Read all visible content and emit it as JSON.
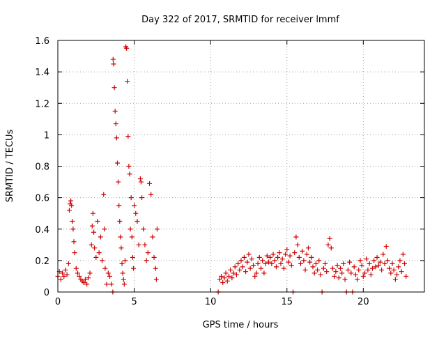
{
  "chart_data": {
    "type": "scatter",
    "title": "Day 322 of 2017, SRMTID for receiver lmmf",
    "xlabel": "GPS time / hours",
    "ylabel": "SRMTID / TECUs",
    "xlim": [
      0,
      24
    ],
    "ylim": [
      0,
      1.6
    ],
    "grid": true,
    "marker": "plus",
    "x_ticks": [
      0,
      5,
      10,
      15,
      20
    ],
    "x_tick_labels": [
      "0",
      "5",
      "10",
      "15",
      "20"
    ],
    "y_ticks": [
      0,
      0.2,
      0.4,
      0.6,
      0.8,
      1.0,
      1.2,
      1.4,
      1.6
    ],
    "y_tick_labels": [
      "0",
      "0.2",
      "0.4",
      "0.6",
      "0.8",
      "1",
      "1.2",
      "1.4",
      "1.6"
    ],
    "colors": {
      "series": "#cc0000",
      "grid": "#a0a0a0",
      "axis": "#000000"
    },
    "series": [
      {
        "name": "SRMTID",
        "points": [
          [
            0.0,
            0.1
          ],
          [
            0.1,
            0.13
          ],
          [
            0.2,
            0.08
          ],
          [
            0.3,
            0.12
          ],
          [
            0.4,
            0.1
          ],
          [
            0.5,
            0.14
          ],
          [
            0.6,
            0.11
          ],
          [
            0.7,
            0.18
          ],
          [
            0.75,
            0.52
          ],
          [
            0.8,
            0.56
          ],
          [
            0.85,
            0.58
          ],
          [
            0.9,
            0.55
          ],
          [
            0.95,
            0.45
          ],
          [
            1.0,
            0.4
          ],
          [
            1.05,
            0.32
          ],
          [
            1.1,
            0.25
          ],
          [
            1.2,
            0.15
          ],
          [
            1.3,
            0.12
          ],
          [
            1.4,
            0.1
          ],
          [
            1.5,
            0.08
          ],
          [
            1.6,
            0.07
          ],
          [
            1.7,
            0.06
          ],
          [
            1.8,
            0.08
          ],
          [
            1.9,
            0.05
          ],
          [
            2.0,
            0.09
          ],
          [
            2.1,
            0.12
          ],
          [
            2.2,
            0.3
          ],
          [
            2.25,
            0.42
          ],
          [
            2.3,
            0.5
          ],
          [
            2.35,
            0.38
          ],
          [
            2.4,
            0.28
          ],
          [
            2.5,
            0.22
          ],
          [
            2.6,
            0.45
          ],
          [
            2.7,
            0.25
          ],
          [
            2.8,
            0.35
          ],
          [
            2.9,
            0.2
          ],
          [
            3.0,
            0.62
          ],
          [
            3.05,
            0.4
          ],
          [
            3.1,
            0.15
          ],
          [
            3.2,
            0.05
          ],
          [
            3.3,
            0.12
          ],
          [
            3.4,
            0.1
          ],
          [
            3.5,
            0.05
          ],
          [
            3.6,
            0.0
          ],
          [
            3.62,
            1.48
          ],
          [
            3.65,
            1.45
          ],
          [
            3.7,
            1.3
          ],
          [
            3.75,
            1.15
          ],
          [
            3.8,
            1.07
          ],
          [
            3.85,
            0.98
          ],
          [
            3.9,
            0.82
          ],
          [
            3.95,
            0.7
          ],
          [
            4.0,
            0.55
          ],
          [
            4.05,
            0.45
          ],
          [
            4.1,
            0.35
          ],
          [
            4.15,
            0.28
          ],
          [
            4.2,
            0.18
          ],
          [
            4.25,
            0.12
          ],
          [
            4.3,
            0.08
          ],
          [
            4.35,
            0.05
          ],
          [
            4.4,
            0.2
          ],
          [
            4.45,
            1.56
          ],
          [
            4.5,
            1.55
          ],
          [
            4.55,
            1.34
          ],
          [
            4.6,
            0.99
          ],
          [
            4.65,
            0.8
          ],
          [
            4.7,
            0.75
          ],
          [
            4.75,
            0.4
          ],
          [
            4.8,
            0.6
          ],
          [
            4.85,
            0.35
          ],
          [
            4.9,
            0.22
          ],
          [
            4.95,
            0.15
          ],
          [
            5.0,
            0.55
          ],
          [
            5.1,
            0.5
          ],
          [
            5.2,
            0.45
          ],
          [
            5.3,
            0.3
          ],
          [
            5.4,
            0.72
          ],
          [
            5.45,
            0.7
          ],
          [
            5.5,
            0.6
          ],
          [
            5.6,
            0.4
          ],
          [
            5.7,
            0.3
          ],
          [
            5.8,
            0.2
          ],
          [
            5.9,
            0.25
          ],
          [
            6.0,
            0.69
          ],
          [
            6.1,
            0.62
          ],
          [
            6.2,
            0.35
          ],
          [
            6.3,
            0.22
          ],
          [
            6.4,
            0.15
          ],
          [
            6.45,
            0.08
          ],
          [
            6.5,
            0.4
          ],
          [
            10.5,
            0.0
          ],
          [
            10.6,
            0.08
          ],
          [
            10.7,
            0.1
          ],
          [
            10.8,
            0.06
          ],
          [
            10.9,
            0.09
          ],
          [
            11.0,
            0.12
          ],
          [
            11.1,
            0.07
          ],
          [
            11.2,
            0.1
          ],
          [
            11.3,
            0.14
          ],
          [
            11.4,
            0.09
          ],
          [
            11.5,
            0.12
          ],
          [
            11.6,
            0.16
          ],
          [
            11.7,
            0.11
          ],
          [
            11.8,
            0.18
          ],
          [
            11.9,
            0.14
          ],
          [
            12.0,
            0.2
          ],
          [
            12.1,
            0.16
          ],
          [
            12.2,
            0.22
          ],
          [
            12.3,
            0.13
          ],
          [
            12.4,
            0.19
          ],
          [
            12.5,
            0.24
          ],
          [
            12.6,
            0.15
          ],
          [
            12.7,
            0.21
          ],
          [
            12.8,
            0.17
          ],
          [
            12.9,
            0.1
          ],
          [
            13.0,
            0.12
          ],
          [
            13.1,
            0.18
          ],
          [
            13.2,
            0.22
          ],
          [
            13.3,
            0.15
          ],
          [
            13.4,
            0.2
          ],
          [
            13.5,
            0.12
          ],
          [
            13.6,
            0.18
          ],
          [
            13.7,
            0.23
          ],
          [
            13.8,
            0.19
          ],
          [
            13.9,
            0.22
          ],
          [
            14.0,
            0.18
          ],
          [
            14.1,
            0.24
          ],
          [
            14.2,
            0.2
          ],
          [
            14.3,
            0.16
          ],
          [
            14.4,
            0.22
          ],
          [
            14.5,
            0.25
          ],
          [
            14.6,
            0.18
          ],
          [
            14.7,
            0.21
          ],
          [
            14.8,
            0.15
          ],
          [
            14.9,
            0.24
          ],
          [
            15.0,
            0.27
          ],
          [
            15.1,
            0.19
          ],
          [
            15.2,
            0.23
          ],
          [
            15.3,
            0.17
          ],
          [
            15.4,
            0.0
          ],
          [
            15.5,
            0.25
          ],
          [
            15.6,
            0.35
          ],
          [
            15.7,
            0.3
          ],
          [
            15.8,
            0.22
          ],
          [
            15.9,
            0.18
          ],
          [
            16.0,
            0.26
          ],
          [
            16.1,
            0.2
          ],
          [
            16.2,
            0.14
          ],
          [
            16.3,
            0.24
          ],
          [
            16.4,
            0.28
          ],
          [
            16.5,
            0.19
          ],
          [
            16.6,
            0.22
          ],
          [
            16.7,
            0.16
          ],
          [
            16.8,
            0.12
          ],
          [
            16.9,
            0.18
          ],
          [
            17.0,
            0.14
          ],
          [
            17.1,
            0.2
          ],
          [
            17.2,
            0.11
          ],
          [
            17.3,
            0.0
          ],
          [
            17.4,
            0.15
          ],
          [
            17.5,
            0.18
          ],
          [
            17.6,
            0.13
          ],
          [
            17.7,
            0.3
          ],
          [
            17.8,
            0.34
          ],
          [
            17.9,
            0.28
          ],
          [
            18.0,
            0.15
          ],
          [
            18.1,
            0.1
          ],
          [
            18.2,
            0.13
          ],
          [
            18.3,
            0.17
          ],
          [
            18.4,
            0.09
          ],
          [
            18.5,
            0.15
          ],
          [
            18.6,
            0.12
          ],
          [
            18.7,
            0.18
          ],
          [
            18.8,
            0.08
          ],
          [
            18.9,
            0.0
          ],
          [
            19.0,
            0.14
          ],
          [
            19.1,
            0.19
          ],
          [
            19.2,
            0.12
          ],
          [
            19.3,
            0.0
          ],
          [
            19.4,
            0.16
          ],
          [
            19.5,
            0.11
          ],
          [
            19.6,
            0.08
          ],
          [
            19.7,
            0.14
          ],
          [
            19.8,
            0.2
          ],
          [
            19.9,
            0.17
          ],
          [
            20.0,
            0.1
          ],
          [
            20.1,
            0.12
          ],
          [
            20.2,
            0.21
          ],
          [
            20.3,
            0.14
          ],
          [
            20.4,
            0.18
          ],
          [
            20.5,
            0.11
          ],
          [
            20.6,
            0.15
          ],
          [
            20.7,
            0.2
          ],
          [
            20.8,
            0.16
          ],
          [
            20.9,
            0.22
          ],
          [
            21.0,
            0.17
          ],
          [
            21.1,
            0.19
          ],
          [
            21.2,
            0.14
          ],
          [
            21.3,
            0.24
          ],
          [
            21.4,
            0.18
          ],
          [
            21.5,
            0.29
          ],
          [
            21.6,
            0.2
          ],
          [
            21.7,
            0.15
          ],
          [
            21.8,
            0.12
          ],
          [
            21.9,
            0.18
          ],
          [
            22.0,
            0.14
          ],
          [
            22.1,
            0.08
          ],
          [
            22.2,
            0.11
          ],
          [
            22.3,
            0.16
          ],
          [
            22.4,
            0.2
          ],
          [
            22.5,
            0.13
          ],
          [
            22.6,
            0.24
          ],
          [
            22.7,
            0.18
          ],
          [
            22.8,
            0.1
          ]
        ]
      }
    ]
  }
}
